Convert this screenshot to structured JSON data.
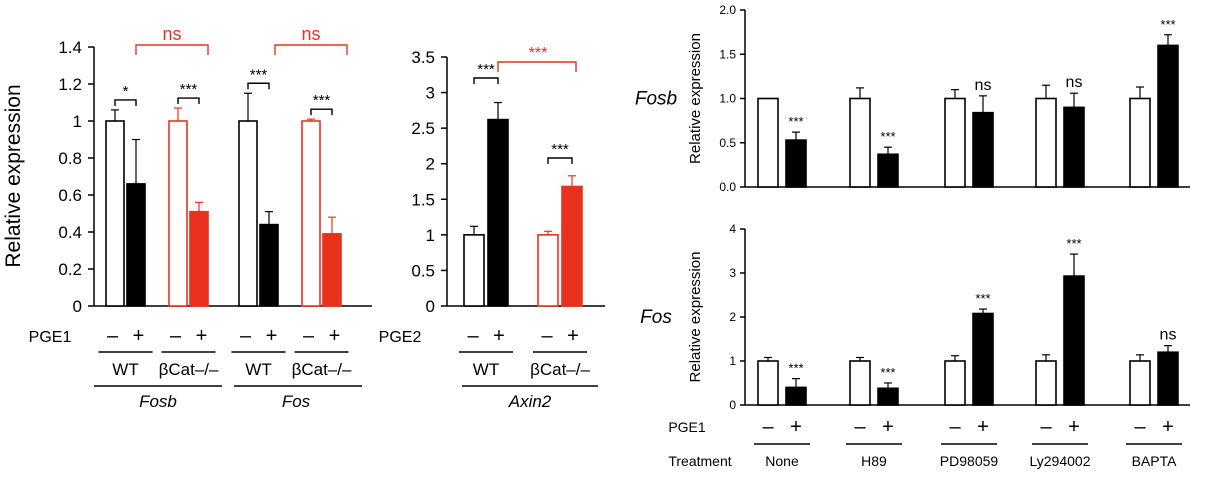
{
  "colors": {
    "black": "#000000",
    "red": "#e8321e",
    "white": "#ffffff"
  },
  "chart_data": [
    {
      "panel": "A",
      "type": "bar",
      "ylabel": "Relative expression",
      "ylim": [
        0,
        1.4
      ],
      "yticks": [
        "0",
        "0.2",
        "0.4",
        "0.6",
        "0.8",
        "1",
        "1.2",
        "1.4"
      ],
      "treatment_label": "PGE1",
      "sign_minus": "–",
      "sign_plus": "+",
      "genotypes": [
        "WT",
        "βCat–/–",
        "WT",
        "βCat–/–"
      ],
      "genes": [
        "Fosb",
        "Fos"
      ],
      "groups": [
        {
          "gene": "Fosb",
          "genotype": "WT",
          "minus": 1.0,
          "minus_err": 0.06,
          "plus": 0.66,
          "plus_err": 0.24,
          "sig": "*"
        },
        {
          "gene": "Fosb",
          "genotype": "βCat–/–",
          "minus": 1.0,
          "minus_err": 0.07,
          "plus": 0.51,
          "plus_err": 0.05,
          "sig": "***"
        },
        {
          "gene": "Fos",
          "genotype": "WT",
          "minus": 1.0,
          "minus_err": 0.15,
          "plus": 0.44,
          "plus_err": 0.07,
          "sig": "***"
        },
        {
          "gene": "Fos",
          "genotype": "βCat–/–",
          "minus": 1.0,
          "minus_err": 0.01,
          "plus": 0.39,
          "plus_err": 0.09,
          "sig": "***"
        }
      ],
      "between_sig": [
        "ns",
        "ns"
      ]
    },
    {
      "panel": "B",
      "type": "bar",
      "ylim": [
        0,
        3.5
      ],
      "yticks": [
        "0",
        "0.5",
        "1",
        "1.5",
        "2",
        "2.5",
        "3",
        "3.5"
      ],
      "treatment_label": "PGE2",
      "genotypes": [
        "WT",
        "βCat–/–"
      ],
      "gene": "Axin2",
      "groups": [
        {
          "genotype": "WT",
          "minus": 1.0,
          "minus_err": 0.12,
          "plus": 2.62,
          "plus_err": 0.24,
          "sig": "***"
        },
        {
          "genotype": "βCat–/–",
          "minus": 1.0,
          "minus_err": 0.05,
          "plus": 1.68,
          "plus_err": 0.15,
          "sig": "***"
        }
      ],
      "between_sig": "***"
    },
    {
      "panel": "C-Fosb",
      "type": "bar",
      "gene": "Fosb",
      "ylabel": "Relative expression",
      "ylim": [
        0,
        2.0
      ],
      "yticks": [
        "0.0",
        "0.5",
        "1.0",
        "1.5",
        "2.0"
      ],
      "groups": [
        {
          "minus": 1.0,
          "minus_err": 0,
          "plus": 0.53,
          "plus_err": 0.09,
          "sig": "***"
        },
        {
          "minus": 1.0,
          "minus_err": 0.12,
          "plus": 0.37,
          "plus_err": 0.08,
          "sig": "***"
        },
        {
          "minus": 1.0,
          "minus_err": 0.1,
          "plus": 0.84,
          "plus_err": 0.19,
          "sig": "ns"
        },
        {
          "minus": 1.0,
          "minus_err": 0.15,
          "plus": 0.9,
          "plus_err": 0.16,
          "sig": "ns"
        },
        {
          "minus": 1.0,
          "minus_err": 0.13,
          "plus": 1.6,
          "plus_err": 0.12,
          "sig": "***"
        }
      ]
    },
    {
      "panel": "C-Fos",
      "type": "bar",
      "gene": "Fos",
      "ylabel": "Relative expression",
      "ylim": [
        0,
        4
      ],
      "yticks": [
        "0",
        "1",
        "2",
        "3",
        "4"
      ],
      "treatment_label": "PGE1",
      "treatment_row_label": "Treatment",
      "treatments": [
        "None",
        "H89",
        "PD98059",
        "Ly294002",
        "BAPTA"
      ],
      "groups": [
        {
          "minus": 1.0,
          "minus_err": 0.08,
          "plus": 0.4,
          "plus_err": 0.2,
          "sig": "***"
        },
        {
          "minus": 1.0,
          "minus_err": 0.08,
          "plus": 0.38,
          "plus_err": 0.12,
          "sig": "***"
        },
        {
          "minus": 1.0,
          "minus_err": 0.12,
          "plus": 2.08,
          "plus_err": 0.1,
          "sig": "***"
        },
        {
          "minus": 1.0,
          "minus_err": 0.14,
          "plus": 2.93,
          "plus_err": 0.5,
          "sig": "***"
        },
        {
          "minus": 1.0,
          "minus_err": 0.14,
          "plus": 1.2,
          "plus_err": 0.15,
          "sig": "ns"
        }
      ]
    }
  ]
}
